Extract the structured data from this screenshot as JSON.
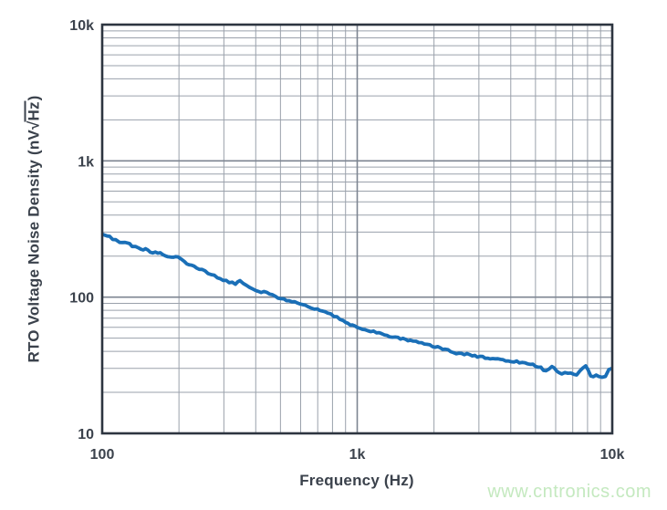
{
  "chart_data": {
    "type": "line",
    "title": "",
    "xlabel": "Frequency (Hz)",
    "ylabel": "RTO Voltage Noise Density (nV√Hz)",
    "ylabel_parts": {
      "prefix": "RTO Voltage Noise Density (nV",
      "radicand": "Hz",
      "suffix": ")"
    },
    "x_scale": "log",
    "y_scale": "log",
    "xlim": [
      100,
      10000
    ],
    "ylim": [
      10,
      10000
    ],
    "grid": true,
    "legend": "none",
    "x_ticks": [
      {
        "value": 100,
        "label": "100"
      },
      {
        "value": 1000,
        "label": "1k"
      },
      {
        "value": 10000,
        "label": "10k"
      }
    ],
    "y_ticks": [
      {
        "value": 10,
        "label": "10"
      },
      {
        "value": 100,
        "label": "100"
      },
      {
        "value": 1000,
        "label": "1k"
      },
      {
        "value": 10000,
        "label": "10k"
      }
    ],
    "series": [
      {
        "name": "RTO voltage noise density",
        "color": "#1a6fb7",
        "points": [
          [
            100,
            290
          ],
          [
            107,
            275
          ],
          [
            113,
            263
          ],
          [
            117,
            249
          ],
          [
            123,
            256
          ],
          [
            131,
            237
          ],
          [
            139,
            229
          ],
          [
            148,
            224
          ],
          [
            158,
            212
          ],
          [
            169,
            209
          ],
          [
            181,
            201
          ],
          [
            190,
            193
          ],
          [
            198,
            200
          ],
          [
            210,
            180
          ],
          [
            224,
            171
          ],
          [
            240,
            162
          ],
          [
            260,
            150
          ],
          [
            283,
            140
          ],
          [
            306,
            131
          ],
          [
            333,
            126
          ],
          [
            347,
            133
          ],
          [
            368,
            120
          ],
          [
            400,
            113
          ],
          [
            441,
            107
          ],
          [
            478,
            101
          ],
          [
            528,
            95
          ],
          [
            583,
            92
          ],
          [
            641,
            85
          ],
          [
            698,
            81
          ],
          [
            745,
            78
          ],
          [
            810,
            73
          ],
          [
            880,
            68
          ],
          [
            939,
            63
          ],
          [
            1000,
            60
          ],
          [
            1072,
            58
          ],
          [
            1190,
            55
          ],
          [
            1307,
            52
          ],
          [
            1445,
            50
          ],
          [
            1617,
            48
          ],
          [
            1787,
            46
          ],
          [
            1975,
            44
          ],
          [
            2215,
            41
          ],
          [
            2445,
            39
          ],
          [
            2694,
            38
          ],
          [
            3030,
            36.5
          ],
          [
            3400,
            35.5
          ],
          [
            3820,
            34.5
          ],
          [
            4220,
            33.5
          ],
          [
            4660,
            32.5
          ],
          [
            5130,
            31
          ],
          [
            5500,
            28.5
          ],
          [
            5800,
            31
          ],
          [
            6170,
            27.8
          ],
          [
            6700,
            27.5
          ],
          [
            7250,
            27.2
          ],
          [
            7870,
            31
          ],
          [
            8230,
            26.5
          ],
          [
            8860,
            26.3
          ],
          [
            9400,
            26
          ],
          [
            9700,
            29.5
          ],
          [
            10000,
            30
          ]
        ]
      }
    ]
  },
  "figure": {
    "watermark": {
      "text": "www.cntronics.com",
      "color": "#c4e9bf"
    }
  },
  "style": {
    "text_color": "#3b424c",
    "grid_minor_color": "#9aa1ab",
    "grid_major_color": "#7d8591",
    "border_color": "#2d3540"
  }
}
